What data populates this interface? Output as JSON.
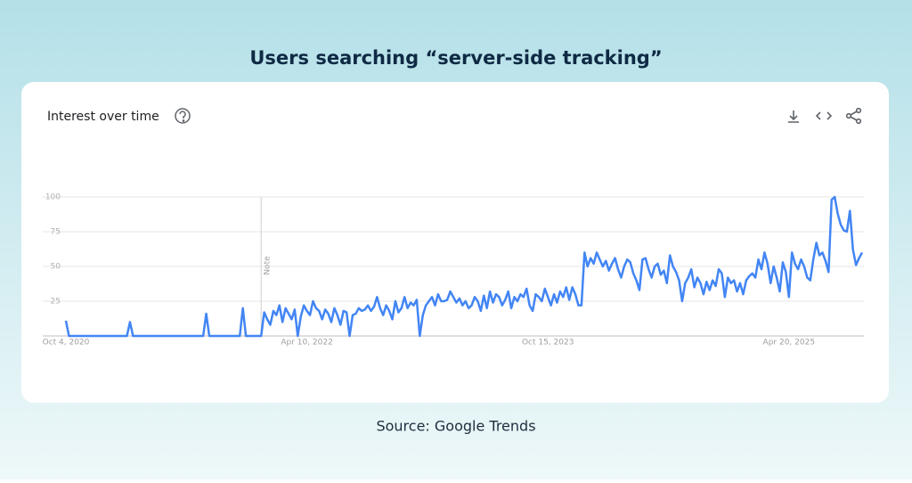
{
  "header": {
    "title": "Users searching “server-side tracking”"
  },
  "card": {
    "heading": "Interest over time"
  },
  "chart_data": {
    "type": "line",
    "color": "#4285f4",
    "grid": true,
    "ylim": [
      0,
      100
    ],
    "yticks": [
      25,
      50,
      75,
      100
    ],
    "note": {
      "text": "Note",
      "x": 64
    },
    "categories": [
      "Oct 4, 2020",
      null,
      null,
      null,
      null,
      null,
      null,
      null,
      null,
      null,
      null,
      null,
      null,
      null,
      null,
      null,
      null,
      null,
      null,
      null,
      null,
      null,
      null,
      null,
      null,
      null,
      null,
      null,
      null,
      null,
      null,
      null,
      null,
      null,
      null,
      null,
      null,
      null,
      null,
      null,
      null,
      null,
      null,
      null,
      null,
      null,
      null,
      null,
      null,
      null,
      null,
      null,
      null,
      null,
      null,
      null,
      null,
      null,
      null,
      null,
      null,
      null,
      null,
      null,
      null,
      null,
      null,
      null,
      null,
      null,
      null,
      null,
      null,
      null,
      null,
      null,
      null,
      null,
      null,
      "Apr 10, 2022",
      null,
      null,
      null,
      null,
      null,
      null,
      null,
      null,
      null,
      null,
      null,
      null,
      null,
      null,
      null,
      null,
      null,
      null,
      null,
      null,
      null,
      null,
      null,
      null,
      null,
      null,
      null,
      null,
      null,
      null,
      null,
      null,
      null,
      null,
      null,
      null,
      null,
      null,
      null,
      null,
      null,
      null,
      null,
      null,
      null,
      null,
      null,
      null,
      null,
      null,
      null,
      null,
      null,
      null,
      null,
      null,
      null,
      null,
      null,
      null,
      null,
      null,
      null,
      null,
      null,
      null,
      null,
      null,
      null,
      null,
      null,
      null,
      null,
      null,
      null,
      null,
      null,
      null,
      "Oct 15, 2023",
      null,
      null,
      null,
      null,
      null,
      null,
      null,
      null,
      null,
      null,
      null,
      null,
      null,
      null,
      null,
      null,
      null,
      null,
      null,
      null,
      null,
      null,
      null,
      null,
      null,
      null,
      null,
      null,
      null,
      null,
      null,
      null,
      null,
      null,
      null,
      null,
      null,
      null,
      null,
      null,
      null,
      null,
      null,
      null,
      null,
      null,
      null,
      null,
      null,
      null,
      null,
      null,
      null,
      null,
      null,
      null,
      null,
      null,
      null,
      null,
      null,
      null,
      null,
      null,
      null,
      null,
      null,
      null,
      null,
      null,
      null,
      null,
      null,
      null,
      null,
      null,
      null,
      null,
      "Apr 20, 2025",
      null,
      null,
      null,
      null,
      null,
      null,
      null,
      null,
      null,
      null,
      null,
      null,
      null,
      null,
      null,
      null,
      null,
      null,
      null,
      null,
      null,
      null,
      null,
      null
    ],
    "values": [
      11,
      0,
      0,
      0,
      0,
      0,
      0,
      0,
      0,
      0,
      0,
      0,
      0,
      0,
      0,
      0,
      0,
      0,
      0,
      0,
      0,
      10,
      0,
      0,
      0,
      0,
      0,
      0,
      0,
      0,
      0,
      0,
      0,
      0,
      0,
      0,
      0,
      0,
      0,
      0,
      0,
      0,
      0,
      0,
      0,
      0,
      16,
      0,
      0,
      0,
      0,
      0,
      0,
      0,
      0,
      0,
      0,
      0,
      20,
      0,
      0,
      0,
      0,
      0,
      0,
      17,
      12,
      8,
      18,
      15,
      22,
      10,
      20,
      16,
      12,
      19,
      0,
      14,
      22,
      18,
      15,
      25,
      20,
      18,
      12,
      19,
      16,
      10,
      20,
      15,
      8,
      18,
      17,
      0,
      15,
      16,
      20,
      18,
      19,
      22,
      18,
      21,
      28,
      20,
      15,
      22,
      18,
      12,
      25,
      17,
      20,
      28,
      20,
      24,
      22,
      26,
      0,
      15,
      22,
      25,
      28,
      22,
      30,
      25,
      25,
      26,
      32,
      28,
      24,
      27,
      22,
      25,
      20,
      22,
      28,
      25,
      18,
      29,
      20,
      32,
      24,
      30,
      28,
      22,
      26,
      32,
      20,
      28,
      25,
      30,
      28,
      34,
      22,
      18,
      30,
      28,
      25,
      34,
      28,
      22,
      30,
      24,
      32,
      28,
      35,
      26,
      35,
      30,
      22,
      22,
      60,
      50,
      56,
      52,
      60,
      55,
      50,
      54,
      47,
      52,
      56,
      48,
      42,
      50,
      55,
      53,
      45,
      40,
      33,
      55,
      56,
      48,
      42,
      50,
      52,
      44,
      47,
      38,
      58,
      50,
      46,
      40,
      25,
      38,
      42,
      48,
      35,
      42,
      38,
      30,
      39,
      33,
      40,
      36,
      48,
      45,
      28,
      42,
      38,
      40,
      32,
      38,
      30,
      40,
      43,
      45,
      42,
      55,
      48,
      60,
      52,
      38,
      50,
      42,
      32,
      53,
      46,
      28,
      60,
      52,
      48,
      55,
      50,
      42,
      40,
      55,
      67,
      58,
      60,
      54,
      46,
      98,
      100,
      88,
      80,
      76,
      75,
      90,
      62,
      51,
      56,
      60
    ]
  },
  "footer": {
    "source": "Source: Google Trends"
  }
}
